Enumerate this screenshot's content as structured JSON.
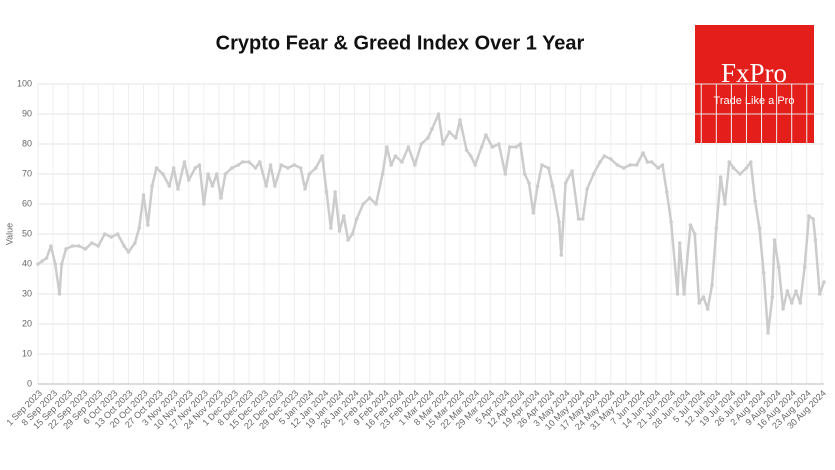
{
  "chart_data": {
    "type": "line",
    "title": "Crypto Fear & Greed Index Over 1 Year",
    "y_label": "Value",
    "color": "#cccccc",
    "grid": true,
    "xlim": [
      "2023-09-01",
      "2024-08-31"
    ],
    "ylim": [
      0,
      100
    ],
    "yticks": [
      0,
      10,
      20,
      30,
      40,
      50,
      60,
      70,
      80,
      90,
      100
    ],
    "xticks": [
      {
        "value": "2023-09-01",
        "label": "1 Sep 2023"
      },
      {
        "value": "2023-09-08",
        "label": "8 Sep 2023"
      },
      {
        "value": "2023-09-15",
        "label": "15 Sep 2023"
      },
      {
        "value": "2023-09-22",
        "label": "22 Sep 2023"
      },
      {
        "value": "2023-09-29",
        "label": "29 Sep 2023"
      },
      {
        "value": "2023-10-06",
        "label": "6 Oct 2023"
      },
      {
        "value": "2023-10-13",
        "label": "13 Oct 2023"
      },
      {
        "value": "2023-10-20",
        "label": "20 Oct 2023"
      },
      {
        "value": "2023-10-27",
        "label": "27 Oct 2023"
      },
      {
        "value": "2023-11-03",
        "label": "3 Nov 2023"
      },
      {
        "value": "2023-11-10",
        "label": "10 Nov 2023"
      },
      {
        "value": "2023-11-17",
        "label": "17 Nov 2023"
      },
      {
        "value": "2023-11-24",
        "label": "24 Nov 2023"
      },
      {
        "value": "2023-12-01",
        "label": "1 Dec 2023"
      },
      {
        "value": "2023-12-08",
        "label": "8 Dec 2023"
      },
      {
        "value": "2023-12-15",
        "label": "15 Dec 2023"
      },
      {
        "value": "2023-12-22",
        "label": "22 Dec 2023"
      },
      {
        "value": "2023-12-29",
        "label": "29 Dec 2023"
      },
      {
        "value": "2024-01-05",
        "label": "5 Jan 2024"
      },
      {
        "value": "2024-01-12",
        "label": "12 Jan 2024"
      },
      {
        "value": "2024-01-19",
        "label": "19 Jan 2024"
      },
      {
        "value": "2024-01-26",
        "label": "26 Jan 2024"
      },
      {
        "value": "2024-02-02",
        "label": "2 Feb 2024"
      },
      {
        "value": "2024-02-09",
        "label": "9 Feb 2024"
      },
      {
        "value": "2024-02-16",
        "label": "16 Feb 2024"
      },
      {
        "value": "2024-02-23",
        "label": "23 Feb 2024"
      },
      {
        "value": "2024-03-01",
        "label": "1 Mar 2024"
      },
      {
        "value": "2024-03-08",
        "label": "8 Mar 2024"
      },
      {
        "value": "2024-03-15",
        "label": "15 Mar 2024"
      },
      {
        "value": "2024-03-22",
        "label": "22 Mar 2024"
      },
      {
        "value": "2024-03-29",
        "label": "29 Mar 2024"
      },
      {
        "value": "2024-04-05",
        "label": "5 Apr 2024"
      },
      {
        "value": "2024-04-12",
        "label": "12 Apr 2024"
      },
      {
        "value": "2024-04-19",
        "label": "19 Apr 2024"
      },
      {
        "value": "2024-04-26",
        "label": "26 Apr 2024"
      },
      {
        "value": "2024-05-03",
        "label": "3 May 2024"
      },
      {
        "value": "2024-05-10",
        "label": "10 May 2024"
      },
      {
        "value": "2024-05-17",
        "label": "17 May 2024"
      },
      {
        "value": "2024-05-24",
        "label": "24 May 2024"
      },
      {
        "value": "2024-05-31",
        "label": "31 May 2024"
      },
      {
        "value": "2024-06-07",
        "label": "7 Jun 2024"
      },
      {
        "value": "2024-06-14",
        "label": "14 Jun 2024"
      },
      {
        "value": "2024-06-21",
        "label": "21 Jun 2024"
      },
      {
        "value": "2024-06-28",
        "label": "28 Jun 2024"
      },
      {
        "value": "2024-07-05",
        "label": "5 Jul 2024"
      },
      {
        "value": "2024-07-12",
        "label": "12 Jul 2024"
      },
      {
        "value": "2024-07-19",
        "label": "19 Jul 2024"
      },
      {
        "value": "2024-07-26",
        "label": "26 Jul 2024"
      },
      {
        "value": "2024-08-02",
        "label": "2 Aug 2024"
      },
      {
        "value": "2024-08-09",
        "label": "9 Aug 2024"
      },
      {
        "value": "2024-08-16",
        "label": "16 Aug 2024"
      },
      {
        "value": "2024-08-23",
        "label": "23 Aug 2024"
      },
      {
        "value": "2024-08-30",
        "label": "30 Aug 2024"
      }
    ],
    "x": [
      "2023-09-01",
      "2023-09-03",
      "2023-09-05",
      "2023-09-07",
      "2023-09-09",
      "2023-09-11",
      "2023-09-12",
      "2023-09-14",
      "2023-09-17",
      "2023-09-20",
      "2023-09-23",
      "2023-09-26",
      "2023-09-29",
      "2023-10-02",
      "2023-10-05",
      "2023-10-08",
      "2023-10-11",
      "2023-10-13",
      "2023-10-16",
      "2023-10-18",
      "2023-10-20",
      "2023-10-22",
      "2023-10-24",
      "2023-10-26",
      "2023-10-29",
      "2023-11-01",
      "2023-11-03",
      "2023-11-05",
      "2023-11-08",
      "2023-11-10",
      "2023-11-13",
      "2023-11-15",
      "2023-11-17",
      "2023-11-19",
      "2023-11-21",
      "2023-11-23",
      "2023-11-25",
      "2023-11-27",
      "2023-11-30",
      "2023-12-03",
      "2023-12-05",
      "2023-12-08",
      "2023-12-11",
      "2023-12-13",
      "2023-12-16",
      "2023-12-18",
      "2023-12-20",
      "2023-12-23",
      "2023-12-26",
      "2023-12-29",
      "2024-01-01",
      "2024-01-03",
      "2024-01-05",
      "2024-01-08",
      "2024-01-11",
      "2024-01-13",
      "2024-01-15",
      "2024-01-17",
      "2024-01-19",
      "2024-01-21",
      "2024-01-23",
      "2024-01-25",
      "2024-01-27",
      "2024-01-30",
      "2024-02-02",
      "2024-02-05",
      "2024-02-08",
      "2024-02-10",
      "2024-02-12",
      "2024-02-14",
      "2024-02-17",
      "2024-02-20",
      "2024-02-23",
      "2024-02-26",
      "2024-02-29",
      "2024-03-02",
      "2024-03-05",
      "2024-03-07",
      "2024-03-10",
      "2024-03-13",
      "2024-03-15",
      "2024-03-18",
      "2024-03-20",
      "2024-03-22",
      "2024-03-25",
      "2024-03-27",
      "2024-03-30",
      "2024-04-02",
      "2024-04-05",
      "2024-04-07",
      "2024-04-10",
      "2024-04-12",
      "2024-04-14",
      "2024-04-16",
      "2024-04-18",
      "2024-04-20",
      "2024-04-22",
      "2024-04-25",
      "2024-04-27",
      "2024-04-30",
      "2024-05-01",
      "2024-05-03",
      "2024-05-06",
      "2024-05-09",
      "2024-05-11",
      "2024-05-13",
      "2024-05-16",
      "2024-05-19",
      "2024-05-21",
      "2024-05-24",
      "2024-05-27",
      "2024-05-30",
      "2024-06-02",
      "2024-06-05",
      "2024-06-08",
      "2024-06-10",
      "2024-06-12",
      "2024-06-15",
      "2024-06-17",
      "2024-06-19",
      "2024-06-21",
      "2024-06-24",
      "2024-06-25",
      "2024-06-27",
      "2024-06-30",
      "2024-07-02",
      "2024-07-04",
      "2024-07-06",
      "2024-07-08",
      "2024-07-10",
      "2024-07-12",
      "2024-07-14",
      "2024-07-16",
      "2024-07-18",
      "2024-07-20",
      "2024-07-23",
      "2024-07-26",
      "2024-07-28",
      "2024-07-30",
      "2024-08-01",
      "2024-08-03",
      "2024-08-05",
      "2024-08-07",
      "2024-08-08",
      "2024-08-10",
      "2024-08-12",
      "2024-08-14",
      "2024-08-16",
      "2024-08-18",
      "2024-08-20",
      "2024-08-22",
      "2024-08-24",
      "2024-08-26",
      "2024-08-27",
      "2024-08-29",
      "2024-08-31"
    ],
    "values": [
      40,
      41,
      42,
      46,
      40,
      30,
      40,
      45,
      46,
      46,
      45,
      47,
      46,
      50,
      49,
      50,
      46,
      44,
      47,
      52,
      63,
      53,
      66,
      72,
      70,
      66,
      72,
      65,
      74,
      68,
      72,
      73,
      60,
      70,
      66,
      70,
      62,
      70,
      72,
      73,
      74,
      74,
      72,
      74,
      66,
      73,
      66,
      73,
      72,
      73,
      72,
      65,
      70,
      72,
      76,
      64,
      52,
      64,
      51,
      56,
      48,
      50,
      55,
      60,
      62,
      60,
      70,
      79,
      73,
      76,
      74,
      79,
      73,
      80,
      82,
      85,
      90,
      80,
      84,
      82,
      88,
      78,
      76,
      73,
      79,
      83,
      79,
      80,
      70,
      79,
      79,
      80,
      70,
      67,
      57,
      66,
      73,
      72,
      66,
      54,
      43,
      67,
      71,
      55,
      55,
      65,
      70,
      74,
      76,
      75,
      73,
      72,
      73,
      73,
      77,
      74,
      74,
      72,
      73,
      64,
      54,
      30,
      47,
      30,
      53,
      50,
      27,
      29,
      25,
      33,
      52,
      69,
      60,
      74,
      72,
      70,
      72,
      74,
      61,
      52,
      37,
      17,
      29,
      48,
      39,
      25,
      31,
      27,
      31,
      27,
      39,
      56,
      55,
      48,
      30,
      34
    ]
  },
  "logo": {
    "brand": "FxPro",
    "tagline": "Trade Like a Pro"
  }
}
